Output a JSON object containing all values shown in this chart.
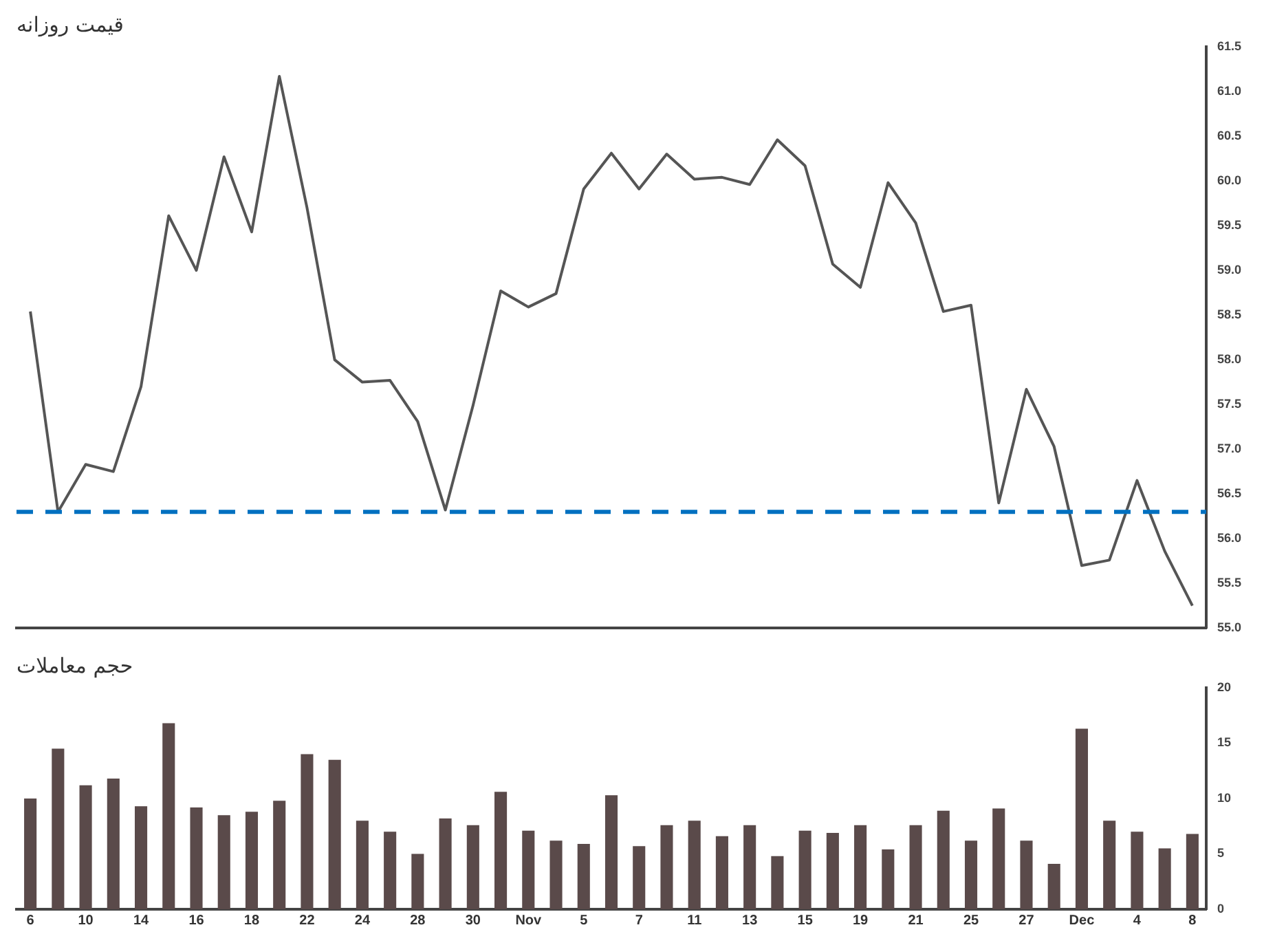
{
  "chart_data": [
    {
      "type": "line",
      "title": "قیمت روزانه",
      "categories": [
        null,
        null,
        null,
        null,
        null,
        null,
        null,
        null,
        null,
        null,
        null,
        null,
        null,
        null,
        null,
        null,
        null,
        null,
        null,
        null,
        null,
        null,
        null,
        null,
        null,
        null,
        null,
        null,
        null,
        null,
        null,
        null,
        null,
        null,
        null,
        null,
        null,
        null,
        null,
        null,
        null,
        null,
        null
      ],
      "series": [
        {
          "color": "#555555",
          "values": [
            58.54,
            56.3,
            56.83,
            56.75,
            57.7,
            59.61,
            59.0,
            60.27,
            59.43,
            61.17,
            59.7,
            58.0,
            57.75,
            57.77,
            57.31,
            56.32,
            57.49,
            58.77,
            58.59,
            58.74,
            59.91,
            60.31,
            59.91,
            60.3,
            60.02,
            60.04,
            59.96,
            60.46,
            60.17,
            59.07,
            58.81,
            59.98,
            59.53,
            58.54,
            58.61,
            56.4,
            57.67,
            57.03,
            55.7,
            55.76,
            56.65,
            55.86,
            55.25
          ]
        }
      ],
      "ylim": [
        55,
        61.5
      ],
      "yticks": [
        {
          "value": 55,
          "label": "55.0"
        },
        {
          "value": 55.5,
          "label": "55.5"
        },
        {
          "value": 56,
          "label": "56.0"
        },
        {
          "value": 56.5,
          "label": "56.5"
        },
        {
          "value": 57,
          "label": "57.0"
        },
        {
          "value": 57.5,
          "label": "57.5"
        },
        {
          "value": 58,
          "label": "58.0"
        },
        {
          "value": 58.5,
          "label": "58.5"
        },
        {
          "value": 59,
          "label": "59.0"
        },
        {
          "value": 59.5,
          "label": "59.5"
        },
        {
          "value": 60,
          "label": "60.0"
        },
        {
          "value": 60.5,
          "label": "60.5"
        },
        {
          "value": 61,
          "label": "61.0"
        },
        {
          "value": 61.5,
          "label": "61.5"
        }
      ],
      "ref_lines": [
        {
          "axis": "y",
          "value": 56.3,
          "color": "#0070c0",
          "line_style": "dashed"
        }
      ],
      "marker": "none",
      "grid": false,
      "legend": false,
      "tick_labels": "y"
    },
    {
      "type": "bar",
      "title": "حجم معاملات",
      "categories": [
        "6",
        null,
        "10",
        null,
        "14",
        null,
        "16",
        null,
        "18",
        null,
        "22",
        null,
        "24",
        null,
        "28",
        null,
        "30",
        null,
        "Nov",
        null,
        "5",
        null,
        "7",
        null,
        "11",
        null,
        "13",
        null,
        "15",
        null,
        "19",
        null,
        "21",
        null,
        "25",
        null,
        "27",
        null,
        "Dec",
        null,
        "4",
        null,
        "8"
      ],
      "series": [
        {
          "color": "#5a4a4a",
          "values": [
            10,
            14.5,
            11.2,
            11.8,
            9.3,
            16.8,
            9.2,
            8.5,
            8.8,
            9.8,
            14,
            13.5,
            8,
            7,
            5,
            8.2,
            7.6,
            10.6,
            7.1,
            6.2,
            5.9,
            10.3,
            5.7,
            7.6,
            8,
            6.6,
            7.6,
            4.8,
            7.1,
            6.9,
            7.6,
            5.4,
            7.6,
            8.9,
            6.2,
            9.1,
            6.2,
            4.1,
            16.3,
            8,
            7,
            5.5,
            6.8
          ]
        }
      ],
      "ylim": [
        0,
        20
      ],
      "yticks": [
        0,
        5,
        10,
        15,
        20
      ],
      "grid": false,
      "legend": false
    }
  ]
}
